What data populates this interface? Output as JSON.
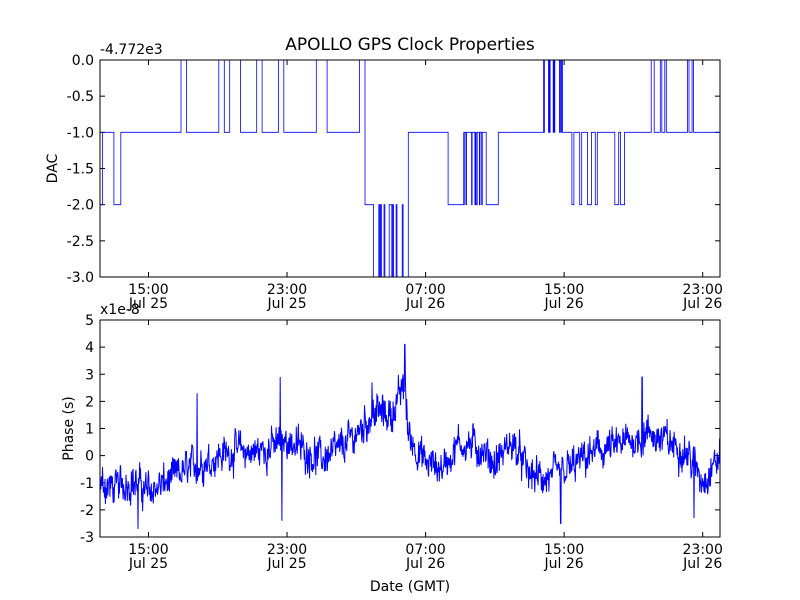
{
  "title": "APOLLO GPS Clock Properties",
  "chart_data": [
    {
      "type": "line",
      "name": "top-panel",
      "ylabel": "DAC",
      "offset_label": "-4.772e3",
      "ylim": [
        -3.0,
        0.0
      ],
      "y_ticks": [
        "-3.0",
        "-2.5",
        "-2.0",
        "-1.5",
        "-1.0",
        "-0.5",
        "0.0"
      ],
      "y_tick_values": [
        -3.0,
        -2.5,
        -2.0,
        -1.5,
        -1.0,
        -0.5,
        0.0
      ],
      "x_ticks": [
        {
          "time": "15:00",
          "date": "Jul 25",
          "hour": 15
        },
        {
          "time": "23:00",
          "date": "Jul 25",
          "hour": 23
        },
        {
          "time": "07:00",
          "date": "Jul 26",
          "hour": 31
        },
        {
          "time": "15:00",
          "date": "Jul 26",
          "hour": 39
        },
        {
          "time": "23:00",
          "date": "Jul 26",
          "hour": 47
        }
      ],
      "xlim_hours": [
        12.2,
        48.0
      ],
      "line_color": "#0000ff",
      "segments": [
        {
          "h0": 12.2,
          "h1": 12.35,
          "v": -2.0
        },
        {
          "h0": 12.35,
          "h1": 13.0,
          "v": -1.0
        },
        {
          "h0": 13.0,
          "h1": 13.4,
          "v": -2.0
        },
        {
          "h0": 13.4,
          "h1": 15.0,
          "v": -1.0
        },
        {
          "h0": 15.0,
          "h1": 27.5,
          "v": -1.0,
          "burst": 0.0
        },
        {
          "h0": 27.5,
          "h1": 28.0,
          "v": -2.0
        },
        {
          "h0": 28.0,
          "h1": 30.0,
          "v": -3.0,
          "burst": -2.0
        },
        {
          "h0": 30.0,
          "h1": 32.3,
          "v": -1.0
        },
        {
          "h0": 32.3,
          "h1": 33.2,
          "v": -2.0
        },
        {
          "h0": 33.2,
          "h1": 34.5,
          "v": -1.0,
          "burst": -2.0
        },
        {
          "h0": 34.5,
          "h1": 35.2,
          "v": -2.0
        },
        {
          "h0": 35.2,
          "h1": 37.8,
          "v": -1.0
        },
        {
          "h0": 37.8,
          "h1": 39.0,
          "v": 0.0,
          "burst": -1.0
        },
        {
          "h0": 39.0,
          "h1": 43.5,
          "v": -1.0,
          "burst": -2.0
        },
        {
          "h0": 43.5,
          "h1": 47.0,
          "v": -1.0,
          "burst": 0.0
        },
        {
          "h0": 47.0,
          "h1": 48.0,
          "v": -1.0
        }
      ]
    },
    {
      "type": "line",
      "name": "bottom-panel",
      "ylabel": "Phase (s)",
      "xlabel": "Date (GMT)",
      "offset_label": "x1e-8",
      "ylim": [
        -3,
        5
      ],
      "y_ticks": [
        "-3",
        "-2",
        "-1",
        "0",
        "1",
        "2",
        "3",
        "4",
        "5"
      ],
      "y_tick_values": [
        -3,
        -2,
        -1,
        0,
        1,
        2,
        3,
        4,
        5
      ],
      "x_ticks": [
        {
          "time": "15:00",
          "date": "Jul 25",
          "hour": 15
        },
        {
          "time": "23:00",
          "date": "Jul 25",
          "hour": 23
        },
        {
          "time": "07:00",
          "date": "Jul 26",
          "hour": 31
        },
        {
          "time": "15:00",
          "date": "Jul 26",
          "hour": 39
        },
        {
          "time": "23:00",
          "date": "Jul 26",
          "hour": 47
        }
      ],
      "xlim_hours": [
        12.2,
        48.0
      ],
      "line_color": "#0000ff",
      "trend": [
        [
          12.2,
          -1.0
        ],
        [
          13.0,
          -1.2
        ],
        [
          14.0,
          -0.9
        ],
        [
          15.0,
          -1.3
        ],
        [
          16.0,
          -1.0
        ],
        [
          17.0,
          -0.6
        ],
        [
          18.0,
          -0.3
        ],
        [
          19.0,
          0.0
        ],
        [
          20.0,
          0.2
        ],
        [
          21.0,
          0.1
        ],
        [
          22.0,
          0.3
        ],
        [
          23.0,
          0.6
        ],
        [
          24.0,
          0.2
        ],
        [
          25.0,
          -0.1
        ],
        [
          26.0,
          0.2
        ],
        [
          27.0,
          0.8
        ],
        [
          28.0,
          1.6
        ],
        [
          29.0,
          1.5
        ],
        [
          29.8,
          2.6
        ],
        [
          30.0,
          0.8
        ],
        [
          31.0,
          -0.3
        ],
        [
          32.0,
          -0.4
        ],
        [
          33.0,
          0.5
        ],
        [
          34.0,
          0.3
        ],
        [
          35.0,
          -0.3
        ],
        [
          36.0,
          0.5
        ],
        [
          37.0,
          -0.7
        ],
        [
          38.0,
          -0.9
        ],
        [
          39.0,
          -0.6
        ],
        [
          40.0,
          -0.2
        ],
        [
          41.0,
          0.2
        ],
        [
          42.0,
          0.3
        ],
        [
          43.0,
          0.6
        ],
        [
          44.0,
          0.8
        ],
        [
          45.0,
          0.5
        ],
        [
          46.0,
          0.2
        ],
        [
          47.0,
          -0.9
        ],
        [
          48.0,
          0.0
        ]
      ],
      "spikes": [
        {
          "hour": 17.8,
          "value": 2.3
        },
        {
          "hour": 22.6,
          "value": 2.9
        },
        {
          "hour": 27.9,
          "value": 2.7
        },
        {
          "hour": 29.8,
          "value": 4.1
        },
        {
          "hour": 14.4,
          "value": -2.7
        },
        {
          "hour": 22.7,
          "value": -2.4
        },
        {
          "hour": 38.8,
          "value": -2.5
        },
        {
          "hour": 43.5,
          "value": 2.9
        },
        {
          "hour": 46.5,
          "value": -2.3
        }
      ]
    }
  ]
}
